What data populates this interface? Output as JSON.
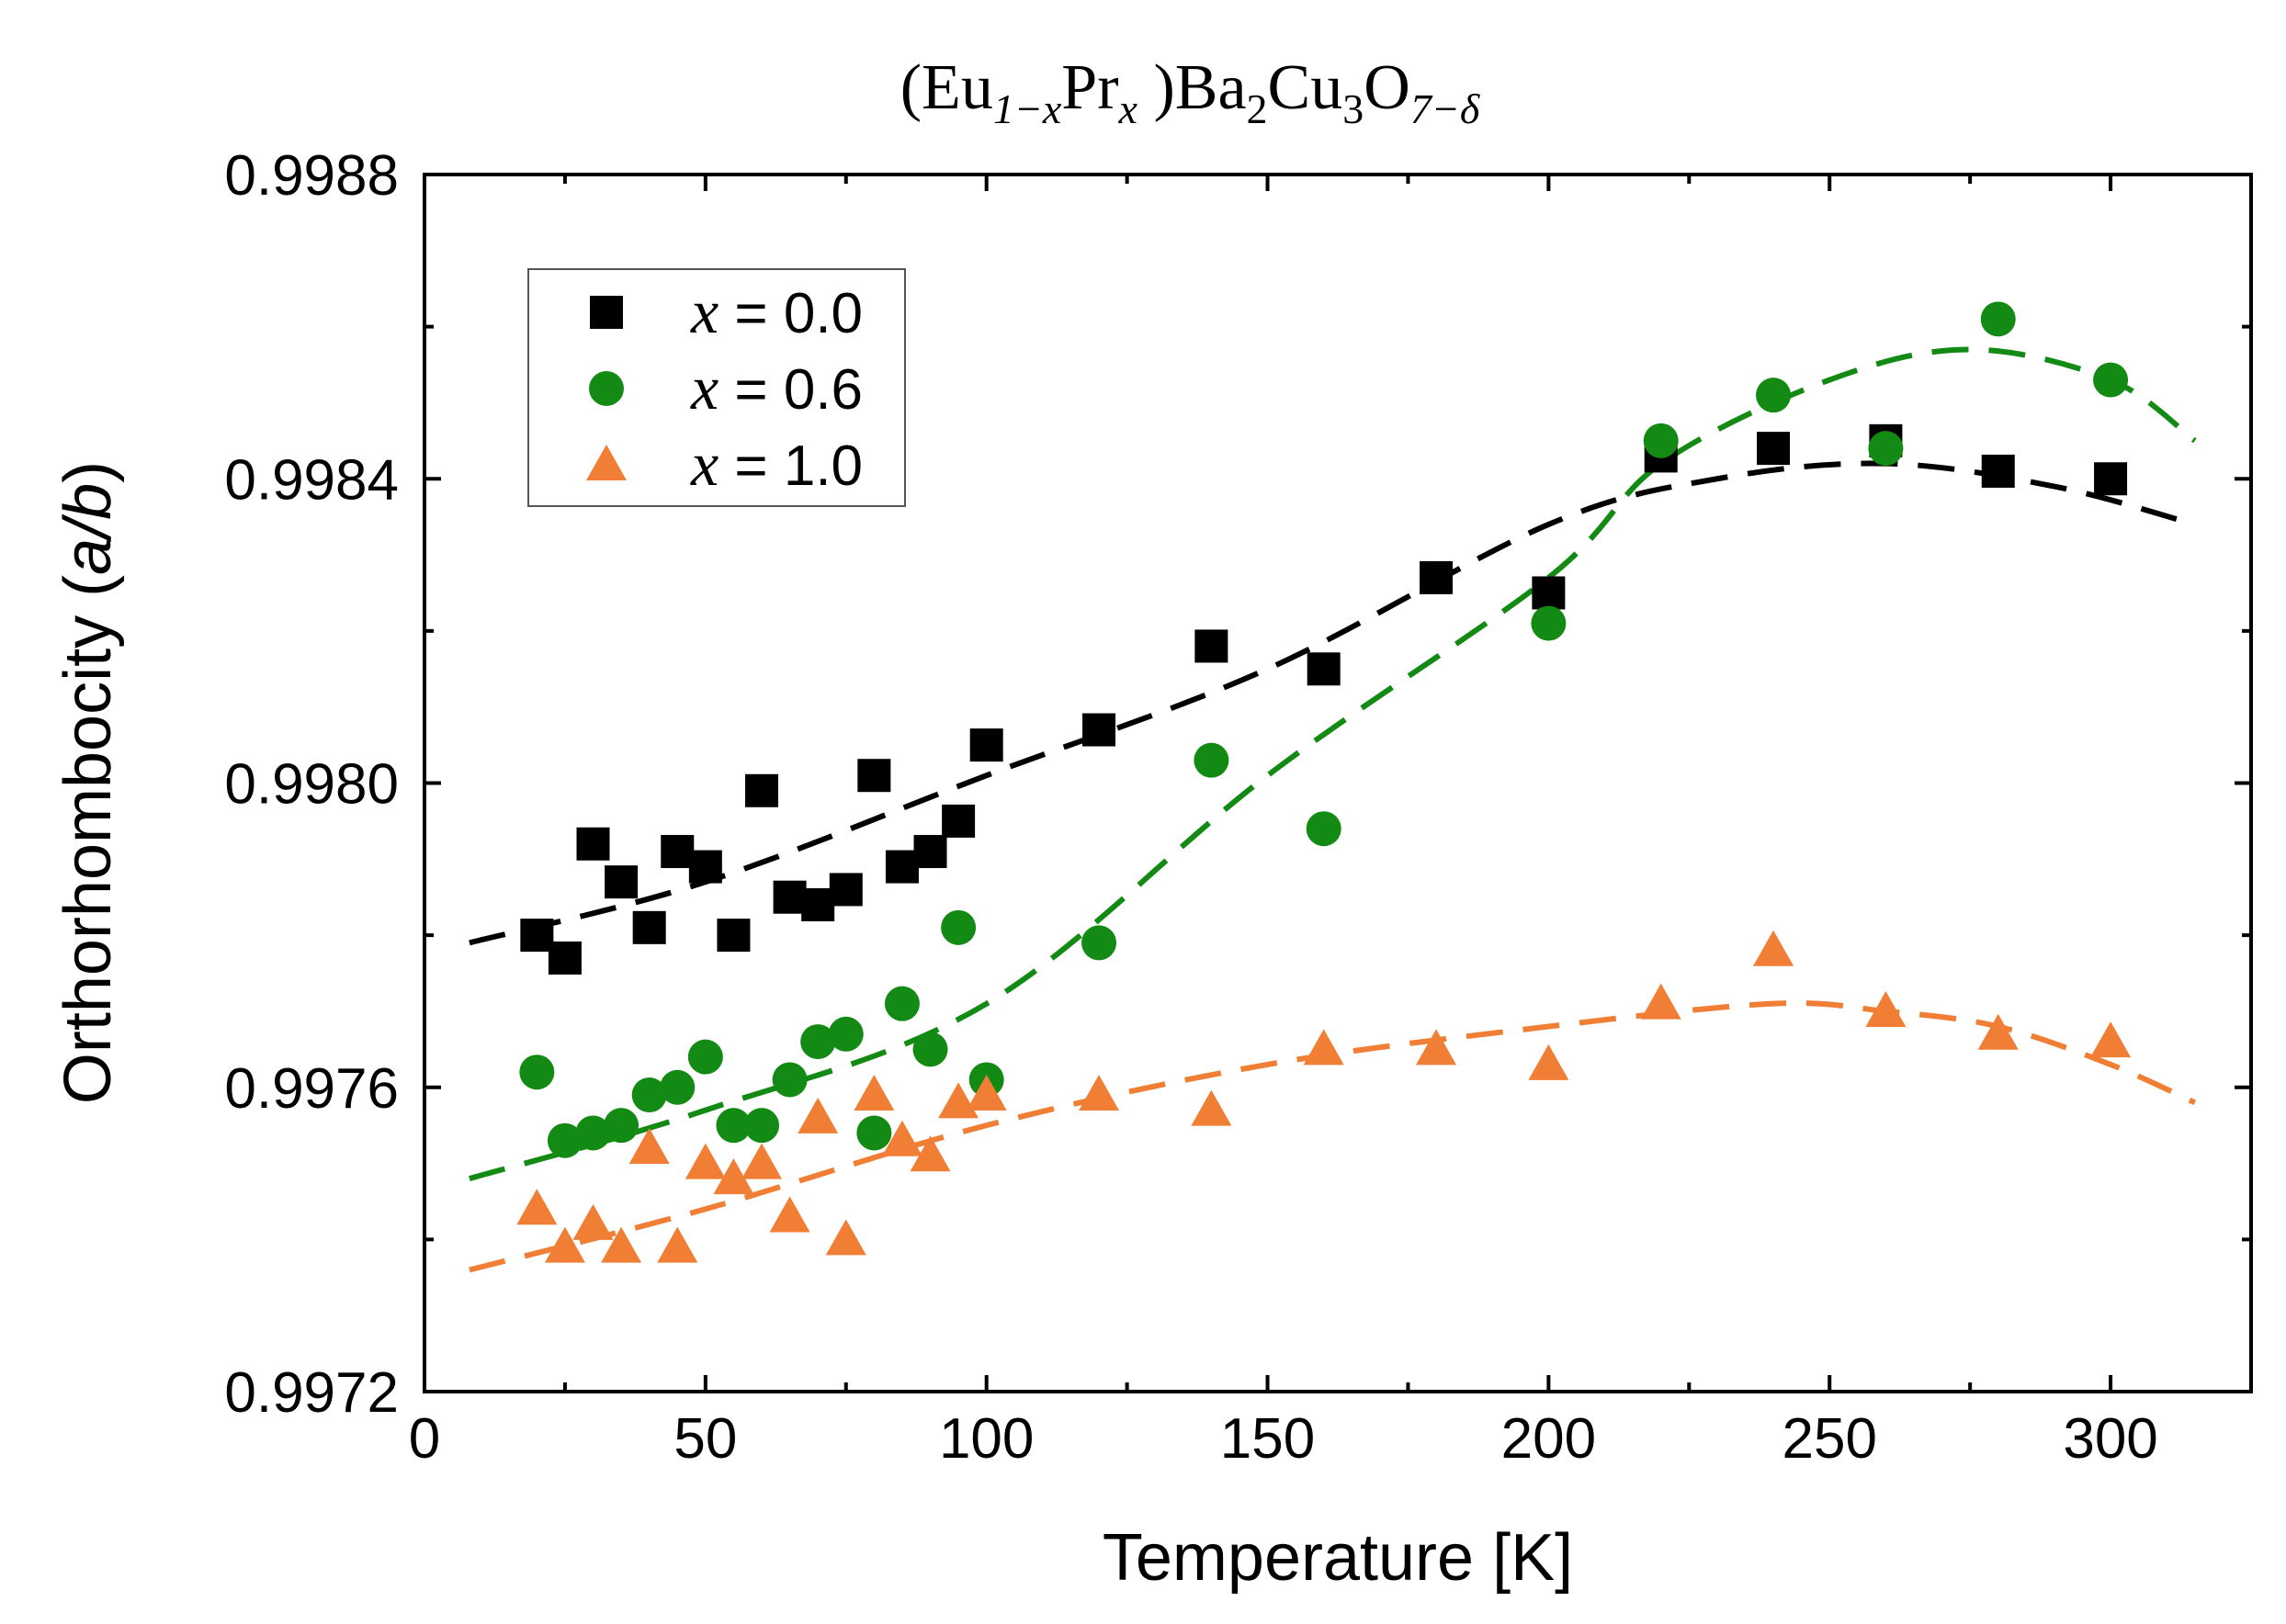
{
  "chart_data": {
    "type": "scatter",
    "title": {
      "open": "(Eu",
      "sub1": "1−x",
      "pr": "Pr",
      "sub2": "x",
      "mid": " )Ba",
      "sub3": "2",
      "cu": "Cu",
      "sub4": "3",
      "o": "O",
      "sub5": "7−δ"
    },
    "xlabel": "Temperature [K]",
    "ylabel": {
      "main": "Orthorhombocity (",
      "italic": "a/b",
      "close": ")"
    },
    "xlim": [
      0,
      325
    ],
    "ylim": [
      0.9972,
      0.9988
    ],
    "xticks": [
      "0",
      "50",
      "100",
      "150",
      "200",
      "250",
      "300"
    ],
    "yticks": [
      "0.9972",
      "0.9976",
      "0.9980",
      "0.9984",
      "0.9988"
    ],
    "legend_position": "top-left",
    "series": [
      {
        "name": "x = 0.0",
        "legend_var": "x",
        "legend_val": "= 0.0",
        "marker": "square",
        "color": "#000000",
        "x": [
          20,
          25,
          30,
          35,
          40,
          45,
          50,
          55,
          60,
          65,
          70,
          75,
          80,
          85,
          90,
          95,
          100,
          120,
          140,
          160,
          180,
          200,
          220,
          240,
          260,
          280,
          300
        ],
        "y": [
          0.9978,
          0.99777,
          0.99792,
          0.99787,
          0.99781,
          0.99791,
          0.99789,
          0.9978,
          0.99799,
          0.99785,
          0.99784,
          0.99786,
          0.99801,
          0.99789,
          0.99791,
          0.99795,
          0.99805,
          0.99807,
          0.99818,
          0.99815,
          0.99827,
          0.99825,
          0.99843,
          0.99844,
          0.99845,
          0.99841,
          0.9984
        ],
        "fit_x": [
          8,
          50,
          100,
          150,
          200,
          230,
          260,
          290,
          315
        ],
        "fit_y": [
          0.99779,
          0.99787,
          0.99801,
          0.99815,
          0.99834,
          0.9984,
          0.99842,
          0.99839,
          0.99834
        ]
      },
      {
        "name": "x = 0.6",
        "legend_var": "x",
        "legend_val": "= 0.6",
        "marker": "circle",
        "color": "#138a13",
        "x": [
          20,
          25,
          30,
          35,
          40,
          45,
          50,
          55,
          60,
          65,
          70,
          75,
          80,
          85,
          90,
          95,
          100,
          120,
          140,
          160,
          200,
          220,
          240,
          260,
          280,
          300
        ],
        "y": [
          0.99762,
          0.99753,
          0.99754,
          0.99755,
          0.99759,
          0.9976,
          0.99764,
          0.99755,
          0.99755,
          0.99761,
          0.99766,
          0.99767,
          0.99754,
          0.99771,
          0.99765,
          0.99781,
          0.99761,
          0.99779,
          0.99803,
          0.99794,
          0.99821,
          0.99845,
          0.99851,
          0.99844,
          0.99861,
          0.99853
        ],
        "fit_x": [
          8,
          50,
          100,
          150,
          200,
          220,
          250,
          275,
          300,
          315
        ],
        "fit_y": [
          0.99748,
          0.99757,
          0.99771,
          0.99801,
          0.99827,
          0.99842,
          0.99853,
          0.99857,
          0.99853,
          0.99845
        ]
      },
      {
        "name": "x = 1.0",
        "legend_var": "x",
        "legend_val": "= 1.0",
        "marker": "triangle",
        "color": "#f07f35",
        "x": [
          20,
          25,
          30,
          35,
          40,
          45,
          50,
          55,
          60,
          65,
          70,
          75,
          80,
          85,
          90,
          95,
          100,
          120,
          140,
          160,
          180,
          200,
          220,
          240,
          260,
          280,
          300
        ],
        "y": [
          0.99744,
          0.99739,
          0.99742,
          0.99739,
          0.99752,
          0.99739,
          0.9975,
          0.99748,
          0.9975,
          0.99743,
          0.99756,
          0.9974,
          0.99759,
          0.99753,
          0.99751,
          0.99758,
          0.99759,
          0.99759,
          0.99757,
          0.99765,
          0.99765,
          0.99763,
          0.99771,
          0.99778,
          0.9977,
          0.99767,
          0.99766
        ],
        "fit_x": [
          8,
          50,
          100,
          150,
          200,
          240,
          260,
          280,
          300,
          315
        ],
        "fit_y": [
          0.99736,
          0.99744,
          0.99755,
          0.99763,
          0.99768,
          0.99771,
          0.9977,
          0.99768,
          0.99763,
          0.99758
        ]
      }
    ]
  }
}
